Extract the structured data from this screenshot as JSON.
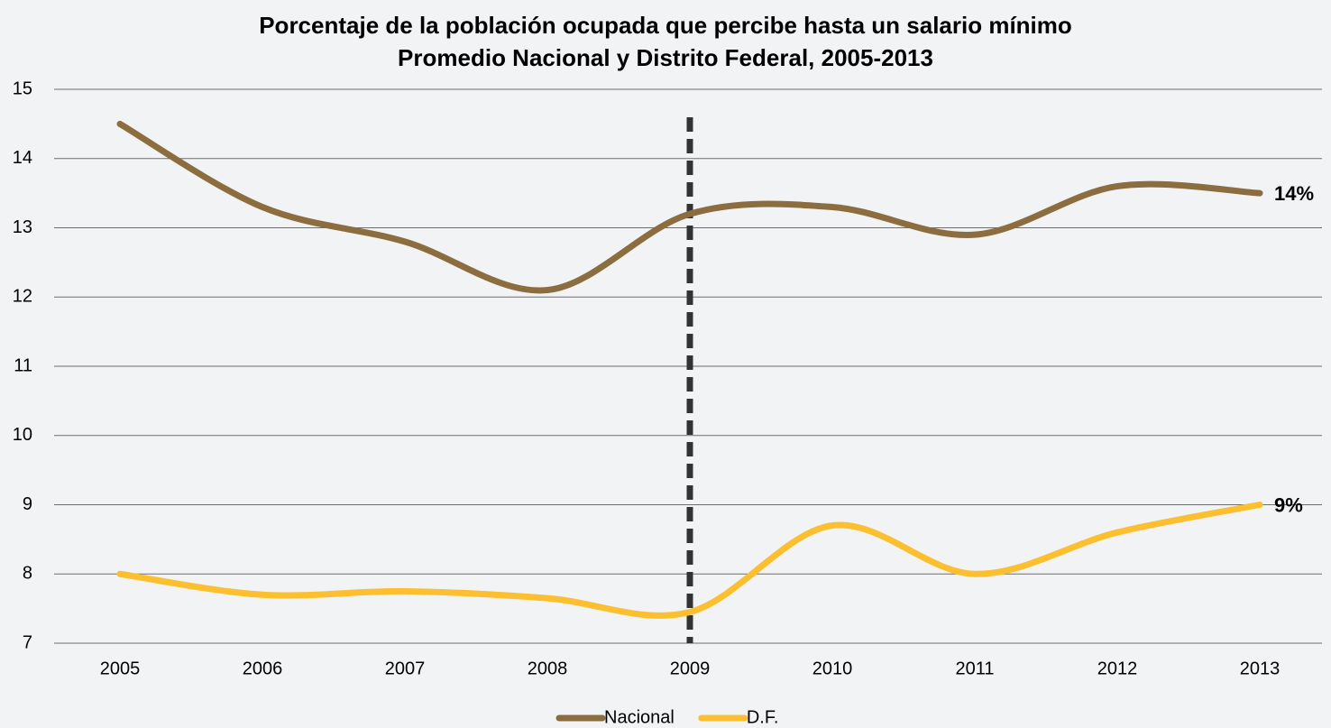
{
  "chart_data": {
    "type": "line",
    "title": "Porcentaje de la población ocupada que percibe hasta un salario mínimo",
    "subtitle": "Promedio Nacional y Distrito Federal, 2005-2013",
    "categories": [
      "2005",
      "2006",
      "2007",
      "2008",
      "2009",
      "2010",
      "2011",
      "2012",
      "2013"
    ],
    "series": [
      {
        "name": "Nacional",
        "color": "#8c6d3f",
        "values": [
          14.5,
          13.3,
          12.8,
          12.1,
          13.2,
          13.3,
          12.9,
          13.6,
          13.5
        ],
        "value_labels": [
          null,
          null,
          null,
          null,
          null,
          null,
          null,
          null,
          "14%"
        ]
      },
      {
        "name": "D.F.",
        "color": "#fbbf2f",
        "values": [
          8.0,
          7.7,
          7.75,
          7.65,
          7.45,
          8.7,
          8.0,
          8.6,
          9.0
        ],
        "value_labels": [
          null,
          null,
          null,
          null,
          null,
          null,
          null,
          null,
          "9%"
        ]
      }
    ],
    "ylim": [
      7,
      15
    ],
    "yticks": [
      7,
      8,
      9,
      10,
      11,
      12,
      13,
      14,
      15
    ],
    "grid": true,
    "smooth": true,
    "legend": "bottom",
    "reference_line": {
      "x": "2009",
      "color": "#333333",
      "style": "dashed"
    }
  }
}
